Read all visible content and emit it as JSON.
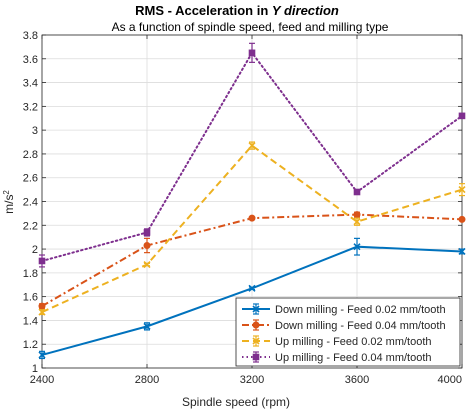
{
  "chart_data": {
    "type": "line",
    "title_parts": [
      "RMS - Acceleration in ",
      "Y direction"
    ],
    "subtitle": "As a function of spindle speed, feed and milling type",
    "xlabel": "Spindle speed (rpm)",
    "ylabel": "m/s",
    "ylabel_superscript": "2",
    "x": [
      2400,
      2800,
      3200,
      3600,
      4000
    ],
    "xlim": [
      2400,
      4000
    ],
    "ylim": [
      1,
      3.8
    ],
    "xticks": [
      "2400",
      "2800",
      "3200",
      "3600",
      "4000"
    ],
    "yticks": [
      "1",
      "1.2",
      "1.4",
      "1.6",
      "1.8",
      "2",
      "2.2",
      "2.4",
      "2.6",
      "2.8",
      "3",
      "3.2",
      "3.4",
      "3.6",
      "3.8"
    ],
    "grid": true,
    "legend_position": "bottom-right",
    "series": [
      {
        "name": "Down milling - Feed 0.02 mm/tooth",
        "color": "#0072BD",
        "dash": "solid",
        "marker": "x",
        "values": [
          1.11,
          1.35,
          1.67,
          2.02,
          1.98
        ],
        "errors": [
          0.03,
          0.03,
          0.01,
          0.07,
          0.02
        ]
      },
      {
        "name": "Down milling - Feed 0.04 mm/tooth",
        "color": "#D95319",
        "dash": "dashdot",
        "marker": "o",
        "values": [
          1.52,
          2.03,
          2.26,
          2.29,
          2.25
        ],
        "errors": [
          0.02,
          0.06,
          0.01,
          0.02,
          0.01
        ]
      },
      {
        "name": "Up milling - Feed 0.02 mm/tooth",
        "color": "#EDB120",
        "dash": "dashed",
        "marker": "x",
        "values": [
          1.47,
          1.87,
          2.87,
          2.23,
          2.5
        ],
        "errors": [
          0.02,
          0.01,
          0.03,
          0.03,
          0.05
        ]
      },
      {
        "name": "Up milling - Feed 0.04 mm/tooth",
        "color": "#7E2F8E",
        "dash": "dotted",
        "marker": "s",
        "values": [
          1.9,
          2.14,
          3.65,
          2.48,
          3.12
        ],
        "errors": [
          0.05,
          0.03,
          0.08,
          0.01,
          0.01
        ]
      }
    ]
  }
}
